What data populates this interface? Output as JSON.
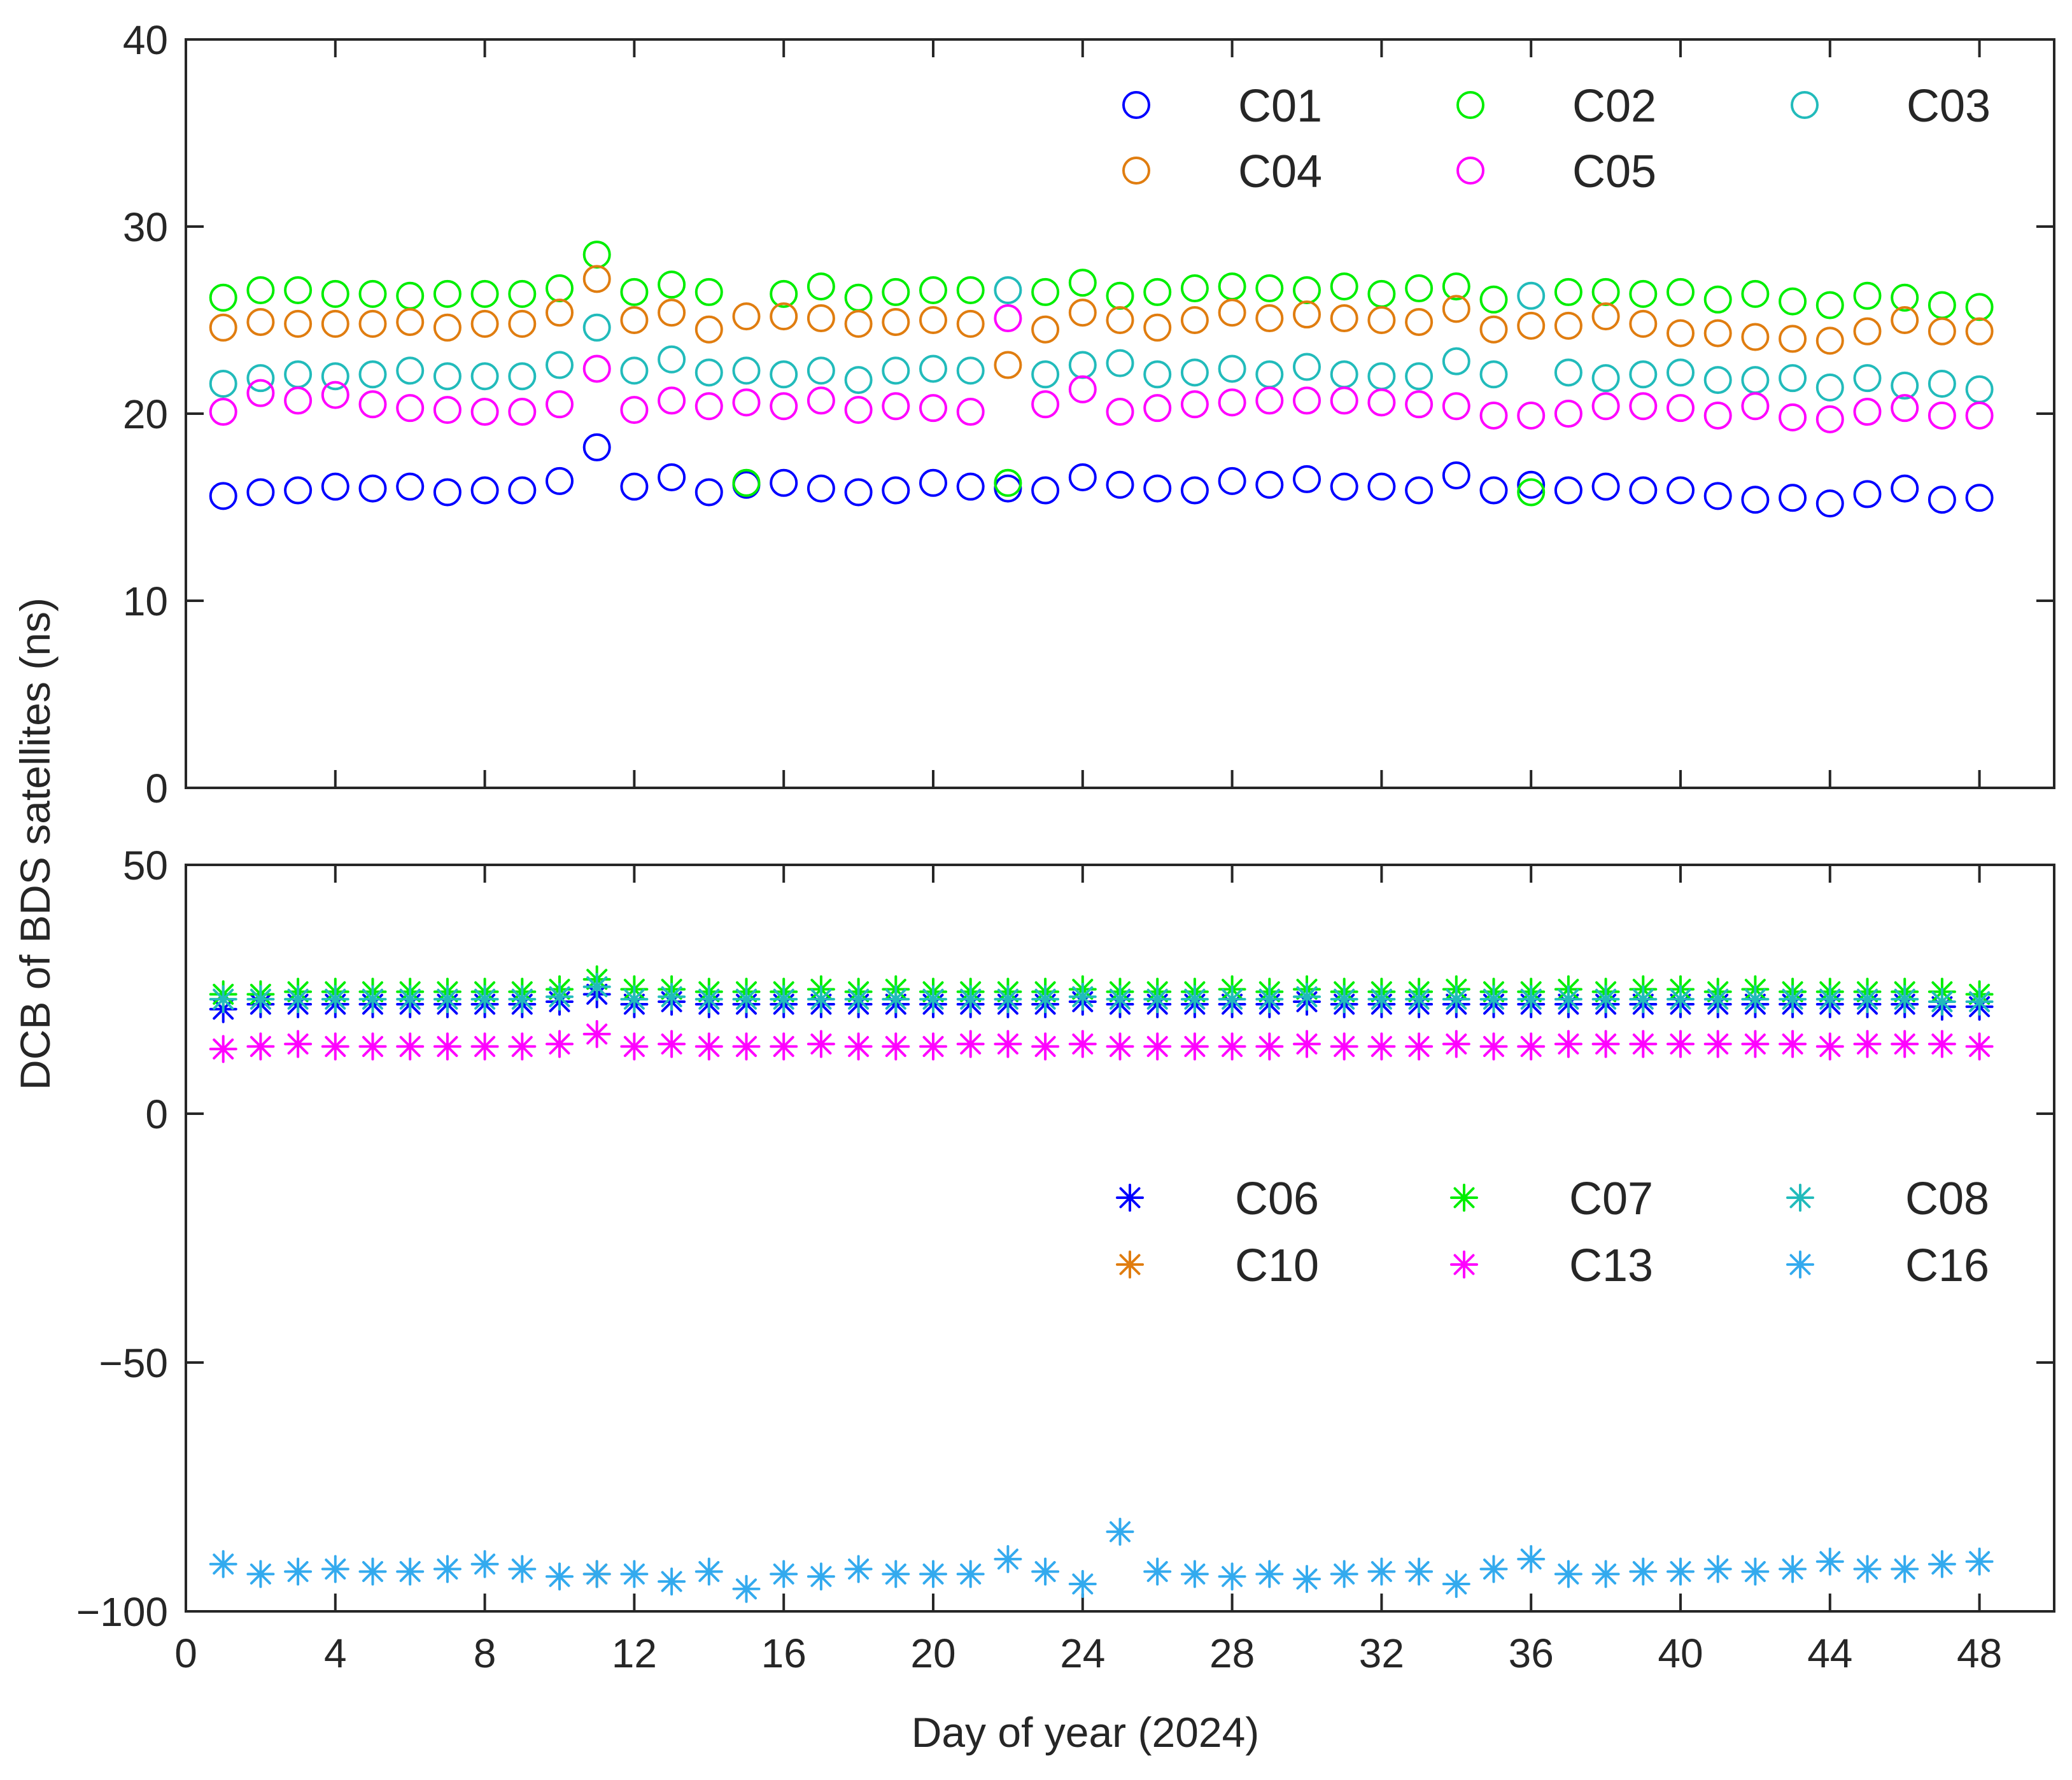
{
  "figure": {
    "ylabel": "DCB of BDS satellites (ns)",
    "xlabel": "Day of year (2024)",
    "colors": {
      "blue": "#0000ff",
      "green": "#00ee00",
      "cyan": "#22bbbb",
      "orange": "#e07d10",
      "magenta": "#ff00ff",
      "sky": "#33aaee",
      "axis": "#262626"
    }
  },
  "chart_data": [
    {
      "type": "scatter",
      "panel": "top",
      "marker": "circle",
      "title": "",
      "xlabel": "Day of year (2024)",
      "ylabel": "DCB of BDS satellites (ns)",
      "xlim": [
        0,
        50
      ],
      "ylim": [
        0,
        40
      ],
      "xticks": [
        0,
        4,
        8,
        12,
        16,
        20,
        24,
        28,
        32,
        36,
        40,
        44,
        48
      ],
      "xtick_labels_visible": false,
      "yticks": [
        0,
        10,
        20,
        30,
        40
      ],
      "ytick_labels": [
        "0",
        "10",
        "20",
        "30",
        "40"
      ],
      "legend_position": "top-right",
      "x": [
        1,
        2,
        3,
        4,
        5,
        6,
        7,
        8,
        9,
        10,
        11,
        12,
        13,
        14,
        15,
        16,
        17,
        18,
        19,
        20,
        21,
        22,
        23,
        24,
        25,
        26,
        27,
        28,
        29,
        30,
        31,
        32,
        33,
        34,
        35,
        36,
        37,
        38,
        39,
        40,
        41,
        42,
        43,
        44,
        45,
        46,
        47,
        48
      ],
      "series": [
        {
          "name": "C01",
          "color": "#0000ff",
          "values": [
            15.6,
            15.8,
            15.9,
            16.1,
            16.0,
            16.1,
            15.8,
            15.9,
            15.9,
            16.4,
            18.2,
            16.1,
            16.6,
            15.8,
            16.2,
            16.3,
            16.0,
            15.8,
            15.9,
            16.3,
            16.1,
            16.0,
            15.9,
            16.6,
            16.2,
            16.0,
            15.9,
            16.4,
            16.2,
            16.5,
            16.1,
            16.1,
            15.9,
            16.7,
            15.9,
            16.2,
            15.9,
            16.1,
            15.9,
            15.9,
            15.6,
            15.4,
            15.5,
            15.2,
            15.7,
            16.0,
            15.4,
            15.5
          ]
        },
        {
          "name": "C02",
          "color": "#00ee00",
          "values": [
            26.2,
            26.6,
            26.6,
            26.4,
            26.4,
            26.3,
            26.4,
            26.4,
            26.4,
            26.7,
            28.5,
            26.5,
            26.9,
            26.5,
            16.3,
            26.4,
            26.8,
            26.2,
            26.5,
            26.6,
            26.6,
            16.3,
            26.5,
            27.0,
            26.3,
            26.5,
            26.7,
            26.8,
            26.7,
            26.6,
            26.8,
            26.4,
            26.7,
            26.8,
            26.1,
            15.8,
            26.5,
            26.5,
            26.4,
            26.5,
            26.1,
            26.4,
            26.0,
            25.8,
            26.3,
            26.2,
            25.8,
            25.7
          ]
        },
        {
          "name": "C03",
          "color": "#22bbbb",
          "values": [
            21.6,
            21.9,
            22.1,
            22.0,
            22.1,
            22.3,
            22.0,
            22.0,
            22.0,
            22.6,
            24.6,
            22.3,
            22.9,
            22.2,
            22.3,
            22.1,
            22.3,
            21.8,
            22.3,
            22.4,
            22.3,
            26.6,
            22.1,
            22.6,
            22.7,
            22.1,
            22.2,
            22.4,
            22.1,
            22.5,
            22.1,
            22.0,
            22.0,
            22.8,
            22.1,
            26.3,
            22.2,
            21.9,
            22.1,
            22.2,
            21.8,
            21.8,
            21.9,
            21.4,
            21.9,
            21.5,
            21.6,
            21.3
          ]
        },
        {
          "name": "C04",
          "color": "#e07d10",
          "values": [
            24.6,
            24.9,
            24.8,
            24.8,
            24.8,
            24.9,
            24.6,
            24.8,
            24.8,
            25.4,
            27.2,
            25.0,
            25.4,
            24.5,
            25.2,
            25.2,
            25.1,
            24.8,
            24.9,
            25.0,
            24.8,
            22.6,
            24.5,
            25.4,
            25.0,
            24.6,
            25.0,
            25.4,
            25.1,
            25.3,
            25.1,
            25.0,
            24.9,
            25.6,
            24.5,
            24.7,
            24.7,
            25.2,
            24.8,
            24.3,
            24.3,
            24.1,
            24.0,
            23.9,
            24.4,
            25.0,
            24.4,
            24.4
          ]
        },
        {
          "name": "C05",
          "color": "#ff00ff",
          "values": [
            20.1,
            21.1,
            20.7,
            21.0,
            20.5,
            20.3,
            20.2,
            20.1,
            20.1,
            20.5,
            22.4,
            20.2,
            20.7,
            20.4,
            20.6,
            20.4,
            20.7,
            20.2,
            20.4,
            20.3,
            20.1,
            25.1,
            20.5,
            21.3,
            20.1,
            20.3,
            20.5,
            20.6,
            20.7,
            20.7,
            20.7,
            20.6,
            20.5,
            20.4,
            19.9,
            19.9,
            20.0,
            20.4,
            20.4,
            20.3,
            19.9,
            20.4,
            19.8,
            19.7,
            20.1,
            20.3,
            19.9,
            19.9
          ]
        }
      ]
    },
    {
      "type": "scatter",
      "panel": "bottom",
      "marker": "asterisk",
      "title": "",
      "xlabel": "Day of year (2024)",
      "ylabel": "DCB of BDS satellites (ns)",
      "xlim": [
        0,
        50
      ],
      "ylim": [
        -100,
        50
      ],
      "xticks": [
        0,
        4,
        8,
        12,
        16,
        20,
        24,
        28,
        32,
        36,
        40,
        44,
        48
      ],
      "xtick_labels": [
        "0",
        "4",
        "8",
        "12",
        "16",
        "20",
        "24",
        "28",
        "32",
        "36",
        "40",
        "44",
        "48"
      ],
      "yticks": [
        -100,
        -50,
        0,
        50
      ],
      "ytick_labels": [
        "−100",
        "−50",
        "0",
        "50"
      ],
      "legend_position": "center-right",
      "x": [
        1,
        2,
        3,
        4,
        5,
        6,
        7,
        8,
        9,
        10,
        11,
        12,
        13,
        14,
        15,
        16,
        17,
        18,
        19,
        20,
        21,
        22,
        23,
        24,
        25,
        26,
        27,
        28,
        29,
        30,
        31,
        32,
        33,
        34,
        35,
        36,
        37,
        38,
        39,
        40,
        41,
        42,
        43,
        44,
        45,
        46,
        47,
        48
      ],
      "series": [
        {
          "name": "C06",
          "color": "#0000ff",
          "values": [
            21.0,
            22.0,
            22.0,
            22.0,
            22.0,
            22.0,
            22.0,
            22.0,
            22.0,
            22.5,
            24.0,
            22.0,
            22.5,
            22.0,
            22.0,
            22.0,
            22.0,
            22.0,
            22.0,
            22.0,
            22.0,
            22.0,
            22.0,
            22.5,
            22.0,
            22.0,
            22.0,
            22.0,
            22.0,
            22.5,
            22.0,
            22.0,
            22.0,
            22.0,
            22.0,
            22.0,
            22.0,
            22.0,
            22.0,
            22.0,
            22.0,
            22.0,
            22.0,
            22.0,
            22.0,
            22.0,
            21.5,
            21.5
          ]
        },
        {
          "name": "C07",
          "color": "#00ee00",
          "values": [
            24.0,
            24.0,
            24.5,
            24.5,
            24.5,
            24.5,
            24.5,
            24.5,
            24.5,
            25.0,
            27.0,
            25.0,
            25.0,
            24.5,
            24.5,
            24.5,
            25.0,
            24.5,
            25.0,
            24.5,
            24.5,
            24.5,
            24.5,
            25.0,
            24.5,
            24.5,
            24.5,
            25.0,
            24.5,
            25.0,
            24.5,
            24.5,
            24.5,
            25.0,
            24.5,
            24.5,
            25.0,
            24.5,
            25.0,
            25.0,
            24.5,
            25.0,
            24.5,
            24.5,
            24.5,
            24.5,
            24.5,
            24.0
          ]
        },
        {
          "name": "C08",
          "color": "#22bbbb",
          "values": [
            23.0,
            23.0,
            23.0,
            23.0,
            23.0,
            23.0,
            23.0,
            23.0,
            23.0,
            23.5,
            25.5,
            23.0,
            23.5,
            23.0,
            23.0,
            23.0,
            23.0,
            23.0,
            23.0,
            23.0,
            23.0,
            23.0,
            23.0,
            23.5,
            23.0,
            23.0,
            23.0,
            23.0,
            23.0,
            23.5,
            23.0,
            23.0,
            23.0,
            23.0,
            23.0,
            23.0,
            23.0,
            23.0,
            23.0,
            23.0,
            23.0,
            23.0,
            23.0,
            23.0,
            23.0,
            23.0,
            22.5,
            22.5
          ]
        },
        {
          "name": "C10",
          "color": "#e07d10",
          "values": [
            null,
            null,
            null,
            null,
            null,
            null,
            null,
            null,
            null,
            null,
            -92.5,
            null,
            null,
            null,
            null,
            null,
            null,
            null,
            null,
            null,
            null,
            null,
            null,
            null,
            null,
            null,
            null,
            null,
            null,
            null,
            null,
            null,
            null,
            null,
            null,
            null,
            null,
            null,
            null,
            null,
            null,
            null,
            null,
            null,
            null,
            null,
            null,
            null
          ]
        },
        {
          "name": "C13",
          "color": "#ff00ff",
          "values": [
            13.0,
            13.5,
            14.0,
            13.5,
            13.5,
            13.5,
            13.5,
            13.5,
            13.5,
            14.0,
            16.0,
            13.5,
            14.0,
            13.5,
            13.5,
            13.5,
            14.0,
            13.5,
            13.5,
            13.5,
            14.0,
            14.0,
            13.5,
            14.0,
            13.5,
            13.5,
            13.5,
            13.5,
            13.5,
            14.0,
            13.5,
            13.5,
            13.5,
            14.0,
            13.5,
            13.5,
            14.0,
            14.0,
            14.0,
            14.0,
            14.0,
            14.0,
            14.0,
            13.5,
            14.0,
            14.0,
            14.0,
            13.5
          ]
        },
        {
          "name": "C16",
          "color": "#33aaee",
          "values": [
            -90.5,
            -92.5,
            -92.0,
            -91.5,
            -92.0,
            -92.0,
            -91.5,
            -90.5,
            -91.5,
            -93.0,
            -92.5,
            -92.5,
            -94.0,
            -92.0,
            -95.5,
            -92.5,
            -93.0,
            -91.5,
            -92.5,
            -92.5,
            -92.5,
            -89.5,
            -92.0,
            -94.5,
            -84.0,
            -92.0,
            -92.5,
            -93.0,
            -92.5,
            -93.5,
            -92.5,
            -92.0,
            -92.0,
            -94.5,
            -91.5,
            -89.5,
            -92.5,
            -92.5,
            -92.0,
            -92.0,
            -91.5,
            -92.0,
            -91.5,
            -90.0,
            -91.5,
            -91.5,
            -90.5,
            -90.0
          ]
        }
      ]
    }
  ]
}
